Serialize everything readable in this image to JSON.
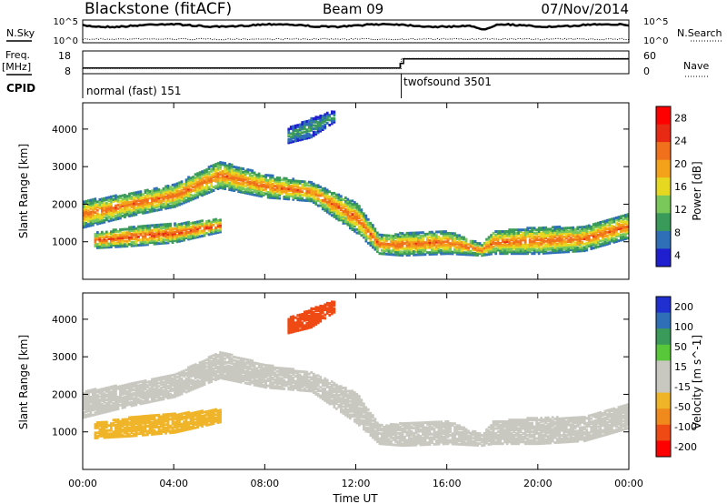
{
  "header": {
    "station": "Blackstone (fitACF)",
    "beam": "Beam 09",
    "date": "07/Nov/2014"
  },
  "summary_panels": {
    "nsky_label": "N.Sky",
    "nsearch_label": "N.Search",
    "noise_ticks": [
      "10^5",
      "10^0"
    ],
    "freq_label": "Freq.",
    "freq_unit": "[MHz]",
    "freq_ticks": [
      "18",
      "8"
    ],
    "nave_label": "Nave",
    "nave_ticks": [
      "60",
      "0"
    ],
    "cpid_label": "CPID",
    "cpid_segments": [
      {
        "name": "normal (fast) 151",
        "start_hour": 0.0,
        "end_hour": 14.0
      },
      {
        "name": "twofsound 3501",
        "start_hour": 14.0,
        "end_hour": 24.0
      }
    ],
    "freq_series": {
      "hours": [
        0,
        13.95,
        13.95,
        14.1,
        14.1,
        24
      ],
      "mhz": [
        10.5,
        10.5,
        12.5,
        12.5,
        14.5,
        14.5
      ]
    },
    "nave_series": {
      "hours": [
        0,
        14.0,
        14.0,
        24
      ],
      "count": [
        14,
        14,
        40,
        40
      ]
    }
  },
  "colors": {
    "power_scale": [
      "#1f1fd0",
      "#2e6fb8",
      "#3a9a5a",
      "#7bc85a",
      "#e6d820",
      "#f4a21a",
      "#f0701c",
      "#e82a14",
      "#ff0000"
    ],
    "velocity_scale": [
      "#ff0000",
      "#f04a14",
      "#f08a1c",
      "#f0b428",
      "#c8c8c0",
      "#c8c8c0",
      "#58c83a",
      "#3a9a5a",
      "#2e6fb8",
      "#1f2fd0"
    ]
  },
  "chart_data": [
    {
      "type": "heatmap",
      "panel": "power",
      "ylabel": "Slant Range [km]",
      "y_ticks": [
        1000,
        2000,
        3000,
        4000
      ],
      "ylim": [
        0,
        4700
      ],
      "x_range_hours": [
        0,
        24
      ],
      "colorbar": {
        "label": "Power [dB]",
        "tick_labels": [
          "28",
          "24",
          "20",
          "16",
          "12",
          "8",
          "4"
        ],
        "range": [
          0,
          32
        ]
      },
      "echo_bands": [
        {
          "name": "main",
          "hours": [
            0,
            2,
            4,
            6,
            8,
            10,
            12,
            13,
            14,
            16,
            17.5,
            18,
            20,
            22,
            24
          ],
          "center_km": [
            1700,
            1950,
            2200,
            2750,
            2450,
            2300,
            1600,
            900,
            900,
            950,
            750,
            950,
            1000,
            1050,
            1400
          ],
          "width_km": [
            700,
            600,
            600,
            700,
            600,
            500,
            800,
            500,
            600,
            600,
            300,
            600,
            700,
            650,
            650
          ],
          "peak_db": 24
        },
        {
          "name": "lower",
          "hours": [
            0.5,
            2,
            4,
            6
          ],
          "center_km": [
            1000,
            1100,
            1200,
            1400
          ],
          "width_km": [
            400,
            500,
            500,
            350
          ],
          "peak_db": 26
        },
        {
          "name": "upper_patch",
          "hours": [
            9,
            10,
            11
          ],
          "center_km": [
            3800,
            4000,
            4300
          ],
          "width_km": [
            400,
            500,
            300
          ],
          "peak_db": 10
        }
      ]
    },
    {
      "type": "heatmap",
      "panel": "velocity",
      "ylabel": "Slant Range [km]",
      "xlabel": "Time UT",
      "y_ticks": [
        1000,
        2000,
        3000,
        4000
      ],
      "ylim": [
        0,
        4700
      ],
      "x_range_hours": [
        0,
        24
      ],
      "x_tick_labels": [
        "00:00",
        "04:00",
        "08:00",
        "12:00",
        "16:00",
        "20:00",
        "00:00"
      ],
      "colorbar": {
        "label": "Velocity [m s^-1]",
        "tick_labels": [
          "200",
          "100",
          "50",
          "15",
          "-15",
          "-50",
          "-100",
          "-200"
        ],
        "range": [
          -250,
          250
        ]
      },
      "echo_bands": [
        {
          "name": "ground_scatter",
          "hours": [
            0,
            2,
            4,
            6,
            8,
            10,
            12,
            13,
            14,
            16,
            17.5,
            18,
            20,
            22,
            24
          ],
          "center_km": [
            1700,
            1950,
            2200,
            2750,
            2450,
            2300,
            1600,
            900,
            900,
            950,
            750,
            950,
            1000,
            1050,
            1400
          ],
          "width_km": [
            700,
            600,
            600,
            700,
            600,
            500,
            800,
            500,
            600,
            600,
            300,
            600,
            700,
            650,
            650
          ],
          "velocity_ms": 0
        },
        {
          "name": "orange_patch",
          "hours": [
            0.5,
            2,
            4,
            6
          ],
          "center_km": [
            1000,
            1100,
            1200,
            1400
          ],
          "width_km": [
            400,
            500,
            500,
            350
          ],
          "velocity_ms": -70
        },
        {
          "name": "red_patch",
          "hours": [
            9,
            10,
            11
          ],
          "center_km": [
            3800,
            4000,
            4300
          ],
          "width_km": [
            400,
            500,
            300
          ],
          "velocity_ms": -180
        }
      ]
    }
  ]
}
